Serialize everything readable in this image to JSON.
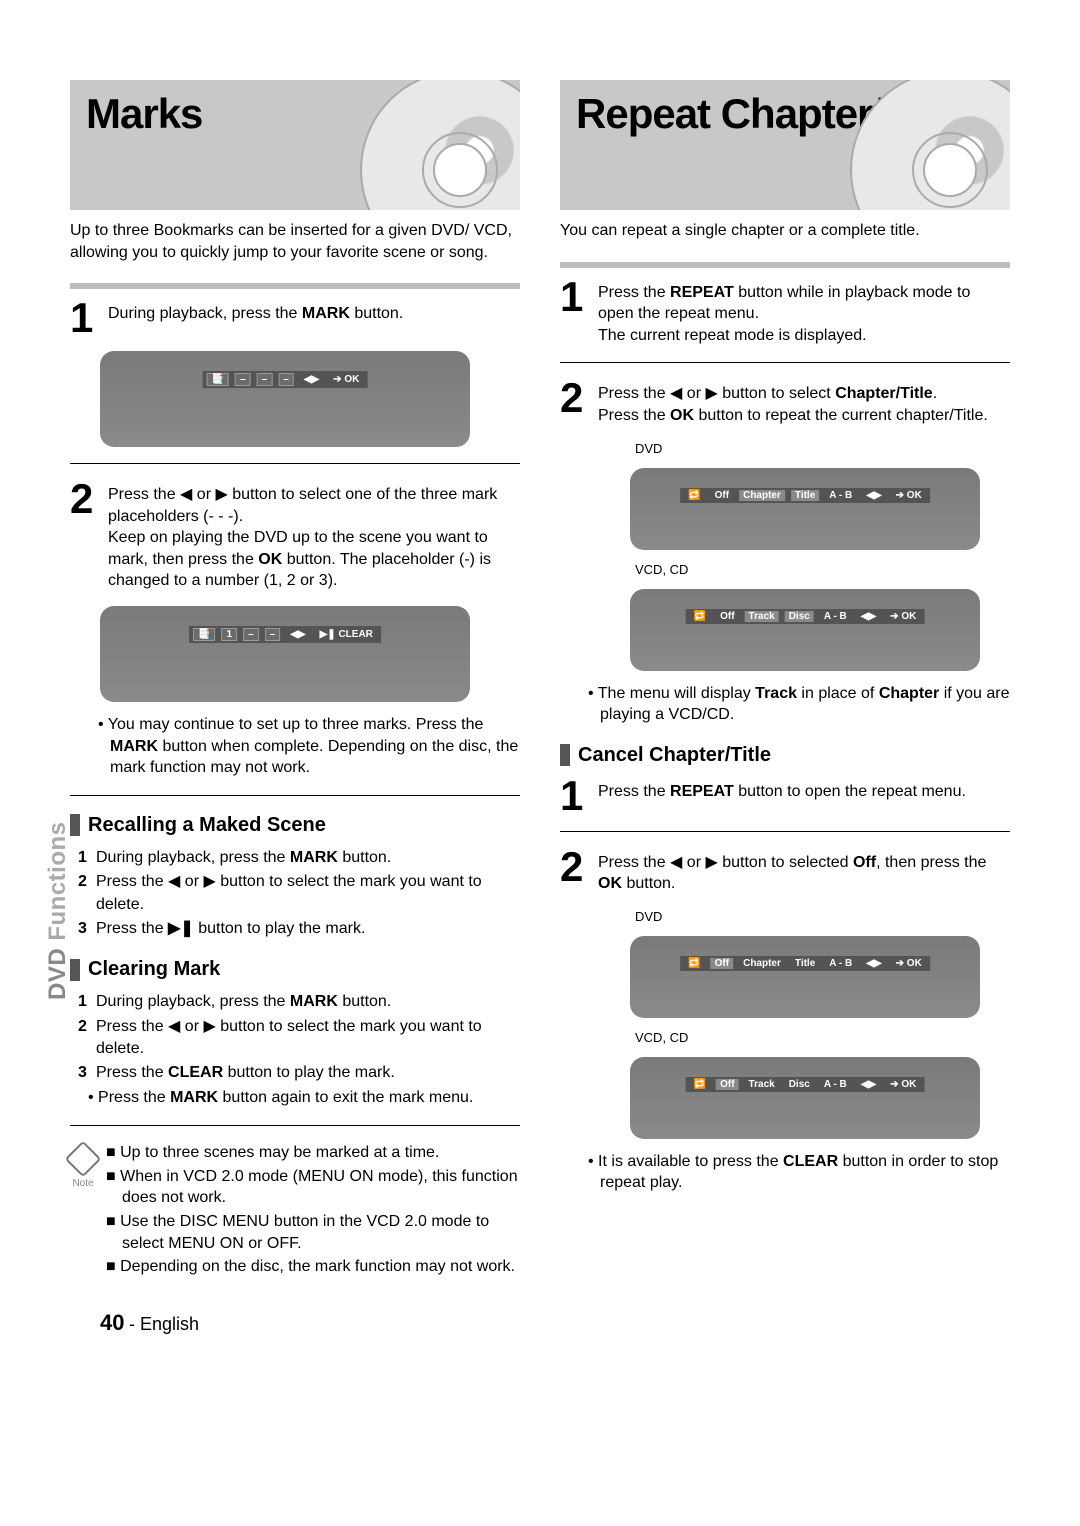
{
  "page": {
    "number": "40",
    "language": "English",
    "sidetab_prefix": "DVD",
    "sidetab_rest": " Functions"
  },
  "left": {
    "title": "Marks",
    "intro": "Up to three Bookmarks can be inserted for a given DVD/ VCD, allowing you to quickly jump to your favorite scene or song.",
    "step1": {
      "num": "1",
      "text_a": "During playback, press the ",
      "text_b": "MARK",
      "text_c": " button."
    },
    "osd1": {
      "items": [
        "📑",
        "–",
        "–",
        "–",
        "◀▶",
        "➔ OK"
      ]
    },
    "step2": {
      "num": "2",
      "line1_a": "Press the ",
      "line1_b": "◀",
      "line1_c": " or ",
      "line1_d": "▶",
      "line1_e": "  button to select one of the three mark placeholders (- - -).",
      "line2_a": "Keep on playing the DVD up to the scene you want to mark, then press the ",
      "line2_b": "OK",
      "line2_c": " button. The placeholder (-) is changed to a number (1, 2 or 3)."
    },
    "osd2": {
      "items": [
        "📑",
        "1",
        "–",
        "–",
        "◀▶",
        "▶❚ CLEAR"
      ]
    },
    "bullet1_a": "You may continue to set up to three marks. Press the ",
    "bullet1_b": "MARK",
    "bullet1_c": " button when complete. Depending on the disc, the mark function may not work.",
    "sub_recall": "Recalling a Maked Scene",
    "recall": [
      {
        "n": "1",
        "t_a": "During playback, press the ",
        "t_b": "MARK",
        "t_c": " button."
      },
      {
        "n": "2",
        "t_a": "Press the ",
        "t_b": "◀",
        "t_c": " or ",
        "t_d": "▶",
        "t_e": " button to select the mark you want to delete."
      },
      {
        "n": "3",
        "t_a": "Press the ",
        "t_b": "▶❚",
        "t_c": " button to play the mark."
      }
    ],
    "sub_clear": "Clearing Mark",
    "clear": [
      {
        "n": "1",
        "t_a": "During playback, press the ",
        "t_b": "MARK",
        "t_c": " button."
      },
      {
        "n": "2",
        "t_a": "Press the ",
        "t_b": "◀",
        "t_c": " or ",
        "t_d": "▶",
        "t_e": " button to select the mark you want to delete."
      },
      {
        "n": "3",
        "t_a": "Press the ",
        "t_b": "CLEAR",
        "t_c": " button to play the mark."
      }
    ],
    "clear_sub_a": "Press the ",
    "clear_sub_b": "MARK",
    "clear_sub_c": " button again to exit the mark menu.",
    "note_label": "Note",
    "notes": [
      "Up to three scenes may be marked at a time.",
      "When in VCD 2.0 mode (MENU ON mode), this function does not work.",
      "Use the DISC MENU button in the VCD 2.0 mode to select MENU ON or OFF.",
      "Depending on the disc, the mark function may not work."
    ]
  },
  "right": {
    "title": "Repeat Chapter/Title",
    "intro": "You can repeat a single chapter or a complete title.",
    "step1": {
      "num": "1",
      "l1_a": "Press the ",
      "l1_b": "REPEAT",
      "l1_c": " button while in playback mode to open the repeat menu.",
      "l2": "The current repeat mode is displayed."
    },
    "step2": {
      "num": "2",
      "l1_a": "Press the ",
      "l1_b": "◀",
      "l1_c": " or ",
      "l1_d": "▶",
      "l1_e": " button to select ",
      "l1_f": "Chapter/Title",
      "l1_g": ".",
      "l2_a": "Press the ",
      "l2_b": "OK",
      "l2_c": " button to repeat the current chapter/Title."
    },
    "label_dvd": "DVD",
    "label_vcd": "VCD, CD",
    "osd_dvd1": [
      "🔁",
      "Off",
      "Chapter",
      "Title",
      "A - B",
      "◀▶",
      "➔ OK"
    ],
    "osd_vcd1": [
      "🔁",
      "Off",
      "Track",
      "Disc",
      "A - B",
      "◀▶",
      "➔ OK"
    ],
    "bullet2_a": "The menu will display ",
    "bullet2_b": "Track",
    "bullet2_c": " in place of ",
    "bullet2_d": "Chapter",
    "bullet2_e": " if you are playing a VCD/CD.",
    "sub_cancel": "Cancel Chapter/Title",
    "cstep1": {
      "num": "1",
      "t_a": "Press the ",
      "t_b": "REPEAT",
      "t_c": " button to open the repeat menu."
    },
    "cstep2": {
      "num": "2",
      "t_a": "Press the ",
      "t_b": "◀",
      "t_c": " or ",
      "t_d": "▶",
      "t_e": " button to selected ",
      "t_f": "Off",
      "t_g": ", then press the ",
      "t_h": "OK",
      "t_i": " button."
    },
    "osd_dvd2": [
      "🔁",
      "Off",
      "Chapter",
      "Title",
      "A - B",
      "◀▶",
      "➔ OK"
    ],
    "osd_vcd2": [
      "🔁",
      "Off",
      "Track",
      "Disc",
      "A - B",
      "◀▶",
      "➔ OK"
    ],
    "bullet3_a": "It is available to press the ",
    "bullet3_b": "CLEAR",
    "bullet3_c": " button in order to stop repeat play."
  },
  "style": {
    "banner_bg": "#c8c8c8",
    "osd_bg": "#7a7a7a",
    "bar_bg": "#545454",
    "line_color": "#bdbdbd"
  }
}
